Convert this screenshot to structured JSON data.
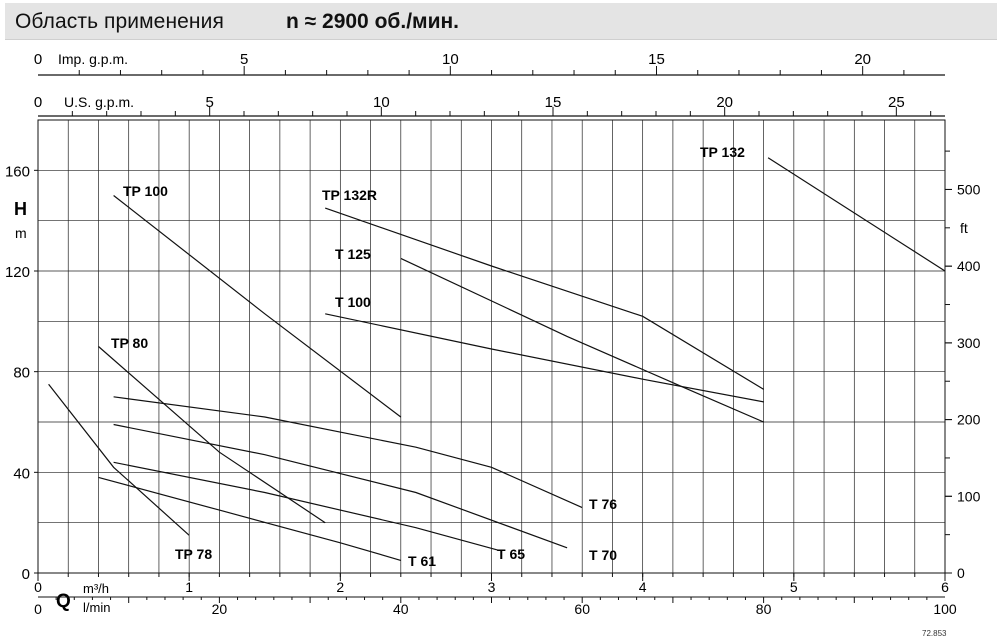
{
  "header": {
    "title": "Область применения",
    "speed_note": "n ≈ 2900 об./мин."
  },
  "code": "72.853",
  "chart_data": {
    "type": "line",
    "xlim": [
      0,
      6
    ],
    "ylim": [
      0,
      180
    ],
    "grid": true,
    "axes": {
      "left": {
        "symbol": "H",
        "unit": "m",
        "ticks": [
          0,
          40,
          80,
          120,
          160
        ]
      },
      "right": {
        "unit": "ft",
        "ticks": [
          0,
          100,
          200,
          300,
          400,
          500
        ]
      },
      "bottom_m3h": {
        "symbol": "Q",
        "unit": "m³/h",
        "ticks": [
          0,
          1,
          2,
          3,
          4,
          5,
          6
        ]
      },
      "bottom_lmin": {
        "unit": "l/min",
        "ticks": [
          0,
          20,
          40,
          60,
          80,
          100
        ]
      },
      "top_imp": {
        "unit": "Imp. g.p.m.",
        "ticks": [
          0,
          5,
          10,
          15,
          20
        ]
      },
      "top_us": {
        "unit": "U.S. g.p.m.",
        "ticks": [
          0,
          5,
          10,
          15,
          20,
          25
        ]
      }
    },
    "series": [
      {
        "name": "TP 132",
        "x": [
          4.83,
          6.0
        ],
        "y": [
          165,
          120
        ]
      },
      {
        "name": "TP 132R",
        "x": [
          1.9,
          3.0,
          4.0,
          4.8
        ],
        "y": [
          145,
          122,
          102,
          73
        ]
      },
      {
        "name": "T 125",
        "x": [
          2.4,
          3.5,
          4.3,
          4.8
        ],
        "y": [
          125,
          94,
          73,
          60
        ]
      },
      {
        "name": "T 100",
        "x": [
          1.9,
          3.0,
          4.0,
          4.8
        ],
        "y": [
          103,
          89,
          77,
          68
        ]
      },
      {
        "name": "TP 100",
        "x": [
          0.5,
          1.5,
          2.4
        ],
        "y": [
          150,
          103,
          62
        ]
      },
      {
        "name": "TP 80",
        "x": [
          0.4,
          1.2,
          1.9
        ],
        "y": [
          90,
          48,
          20
        ]
      },
      {
        "name": "T 76",
        "x": [
          0.5,
          1.5,
          2.5,
          3.0,
          3.6
        ],
        "y": [
          70,
          62,
          50,
          42,
          26
        ]
      },
      {
        "name": "T 70",
        "x": [
          0.5,
          1.5,
          2.5,
          3.5
        ],
        "y": [
          59,
          47,
          32,
          10
        ]
      },
      {
        "name": "T 65",
        "x": [
          0.5,
          1.5,
          2.5,
          3.05
        ],
        "y": [
          44,
          32,
          18,
          9
        ]
      },
      {
        "name": "T 61",
        "x": [
          0.4,
          1.2,
          2.0,
          2.4
        ],
        "y": [
          38,
          25,
          12,
          5
        ]
      },
      {
        "name": "TP 78",
        "x": [
          0.07,
          0.5,
          1.0
        ],
        "y": [
          75,
          42,
          15
        ]
      }
    ]
  }
}
